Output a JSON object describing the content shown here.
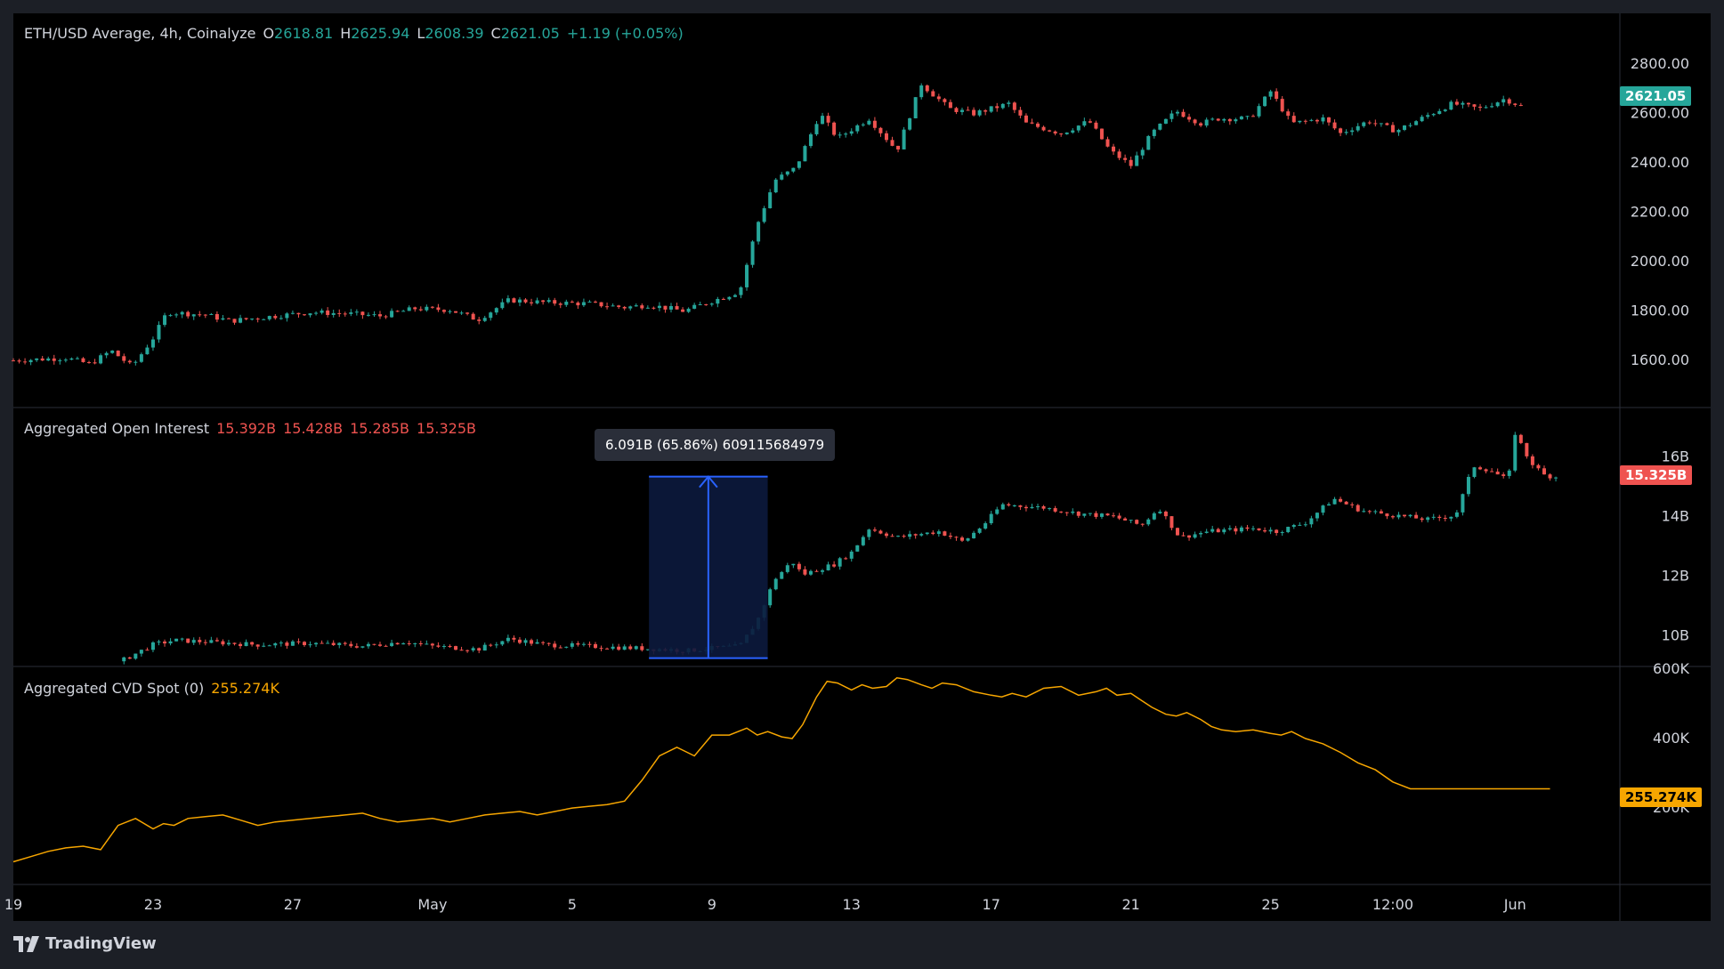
{
  "chart_data": [
    {
      "type": "candlestick",
      "title": "ETH/USD Average, 4h, Coinalyze",
      "ohlc_readout": {
        "open_key": "O",
        "open": "2618.81",
        "high_key": "H",
        "high": "2625.94",
        "low_key": "L",
        "low": "2608.39",
        "close_key": "C",
        "close": "2621.05",
        "change": "+1.19 (+0.05%)"
      },
      "last_value": "2621.05",
      "y_ticks": [
        "2800.00",
        "2600.00",
        "2400.00",
        "2200.00",
        "2000.00",
        "1800.00",
        "1600.00"
      ],
      "ylim": [
        1420,
        2880
      ],
      "close_path": [
        [
          19,
          1600
        ],
        [
          20.5,
          1610
        ],
        [
          21.2,
          1585
        ],
        [
          21.8,
          1640
        ],
        [
          22.4,
          1575
        ],
        [
          23,
          1690
        ],
        [
          23.4,
          1795
        ],
        [
          24.5,
          1785
        ],
        [
          25.2,
          1760
        ],
        [
          26.5,
          1780
        ],
        [
          27.5,
          1795
        ],
        [
          28.5,
          1790
        ],
        [
          29.5,
          1780
        ],
        [
          30.5,
          1810
        ],
        [
          31.5,
          1805
        ],
        [
          32.3,
          1765
        ],
        [
          33.2,
          1845
        ],
        [
          34.2,
          1835
        ],
        [
          35.5,
          1830
        ],
        [
          36.5,
          1815
        ],
        [
          37.2,
          1825
        ],
        [
          38.2,
          1800
        ],
        [
          39,
          1840
        ],
        [
          39.8,
          1880
        ],
        [
          40.3,
          2150
        ],
        [
          40.8,
          2330
        ],
        [
          41.4,
          2380
        ],
        [
          42.1,
          2600
        ],
        [
          42.6,
          2500
        ],
        [
          43.5,
          2580
        ],
        [
          44.3,
          2450
        ],
        [
          45,
          2720
        ],
        [
          45.8,
          2620
        ],
        [
          46.5,
          2600
        ],
        [
          47.5,
          2640
        ],
        [
          48,
          2560
        ],
        [
          49,
          2520
        ],
        [
          49.8,
          2570
        ],
        [
          50.4,
          2450
        ],
        [
          51,
          2390
        ],
        [
          51.6,
          2520
        ],
        [
          52.3,
          2610
        ],
        [
          53,
          2560
        ],
        [
          53.5,
          2580
        ],
        [
          54.4,
          2580
        ],
        [
          55,
          2690
        ],
        [
          55.6,
          2560
        ],
        [
          56.5,
          2580
        ],
        [
          57,
          2520
        ],
        [
          57.8,
          2570
        ],
        [
          58.6,
          2530
        ],
        [
          59.6,
          2600
        ],
        [
          60.2,
          2640
        ],
        [
          61,
          2620
        ],
        [
          61.7,
          2660
        ],
        [
          62.3,
          2621
        ]
      ]
    },
    {
      "type": "candlestick",
      "title": "Aggregated Open Interest",
      "ohlc_readout": {
        "open": "15.392B",
        "high": "15.428B",
        "low": "15.285B",
        "close": "15.325B"
      },
      "last_value": "15.325B",
      "y_ticks": [
        "16B",
        "14B",
        "12B",
        "10B"
      ],
      "ylim": [
        9.0,
        17.3
      ],
      "close_path": [
        [
          19,
          8.7
        ],
        [
          21.5,
          8.8
        ],
        [
          23,
          9.7
        ],
        [
          23.6,
          9.85
        ],
        [
          24.5,
          9.8
        ],
        [
          26,
          9.7
        ],
        [
          27.5,
          9.75
        ],
        [
          29,
          9.65
        ],
        [
          30.2,
          9.8
        ],
        [
          31,
          9.65
        ],
        [
          32.3,
          9.55
        ],
        [
          33.2,
          9.9
        ],
        [
          34.2,
          9.7
        ],
        [
          35.5,
          9.65
        ],
        [
          36.5,
          9.6
        ],
        [
          37.5,
          9.55
        ],
        [
          38.3,
          9.5
        ],
        [
          39.2,
          9.6
        ],
        [
          39.8,
          9.65
        ],
        [
          40.3,
          10.5
        ],
        [
          40.8,
          11.9
        ],
        [
          41.3,
          12.5
        ],
        [
          41.6,
          12.05
        ],
        [
          42.5,
          12.4
        ],
        [
          43,
          12.8
        ],
        [
          43.5,
          13.6
        ],
        [
          44.3,
          13.3
        ],
        [
          45.5,
          13.5
        ],
        [
          46.2,
          13.15
        ],
        [
          46.8,
          13.75
        ],
        [
          47.3,
          14.4
        ],
        [
          48.5,
          14.3
        ],
        [
          49.5,
          14.1
        ],
        [
          50.5,
          14.0
        ],
        [
          51.3,
          13.7
        ],
        [
          51.8,
          14.3
        ],
        [
          52.4,
          13.3
        ],
        [
          53.2,
          13.5
        ],
        [
          54.5,
          13.6
        ],
        [
          55.2,
          13.5
        ],
        [
          56,
          13.8
        ],
        [
          56.8,
          14.6
        ],
        [
          57.6,
          14.2
        ],
        [
          58.5,
          14.05
        ],
        [
          59.5,
          13.9
        ],
        [
          60.3,
          14.05
        ],
        [
          60.8,
          15.7
        ],
        [
          61.3,
          15.55
        ],
        [
          61.8,
          15.2
        ],
        [
          62.0,
          16.8
        ],
        [
          62.4,
          15.9
        ],
        [
          62.8,
          15.4
        ],
        [
          63.2,
          15.325
        ]
      ]
    },
    {
      "type": "line",
      "title": "Aggregated CVD Spot (0)",
      "last_value": "255.274K",
      "y_ticks": [
        "600K",
        "400K",
        "200K"
      ],
      "ylim": [
        -10,
        600
      ],
      "x": [
        19,
        19.5,
        20,
        20.5,
        21,
        21.5,
        22,
        22.5,
        23,
        23.3,
        23.6,
        24,
        24.5,
        25,
        25.5,
        26,
        26.5,
        27,
        27.5,
        28,
        28.5,
        29,
        29.5,
        30,
        30.5,
        31,
        31.5,
        32,
        32.5,
        33,
        33.5,
        34,
        34.5,
        35,
        35.5,
        36,
        36.5,
        37,
        37.5,
        38,
        38.5,
        39,
        39.5,
        40,
        40.3,
        40.6,
        41,
        41.3,
        41.6,
        42,
        42.3,
        42.6,
        43,
        43.3,
        43.6,
        44,
        44.3,
        44.6,
        45,
        45.3,
        45.6,
        46,
        46.5,
        47,
        47.3,
        47.6,
        48,
        48.5,
        49,
        49.5,
        50,
        50.3,
        50.6,
        51,
        51.3,
        51.6,
        52,
        52.3,
        52.6,
        53,
        53.3,
        53.6,
        54,
        54.5,
        55,
        55.3,
        55.6,
        56,
        56.5,
        57,
        57.5,
        58,
        58.5,
        59,
        59.3,
        59.6,
        60,
        60.4,
        60.8,
        61.2,
        61.6,
        62,
        62.3,
        62.6,
        63
      ],
      "values": [
        45,
        60,
        75,
        85,
        90,
        80,
        150,
        170,
        140,
        155,
        150,
        170,
        175,
        180,
        165,
        150,
        160,
        165,
        170,
        175,
        180,
        185,
        170,
        160,
        165,
        170,
        160,
        170,
        180,
        185,
        190,
        180,
        190,
        200,
        205,
        210,
        220,
        280,
        350,
        375,
        350,
        410,
        410,
        430,
        410,
        420,
        405,
        400,
        440,
        520,
        565,
        560,
        540,
        555,
        545,
        550,
        575,
        570,
        555,
        545,
        560,
        555,
        535,
        525,
        520,
        530,
        520,
        545,
        550,
        525,
        535,
        545,
        525,
        530,
        510,
        490,
        470,
        465,
        475,
        455,
        435,
        425,
        420,
        425,
        415,
        410,
        420,
        400,
        385,
        360,
        330,
        310,
        275,
        255.274,
        255.274,
        255.274,
        255.274,
        255.274,
        255.274,
        255.274,
        255.274,
        255.274,
        255.274,
        255.274,
        255.274
      ]
    }
  ],
  "x_axis": {
    "range": [
      19,
      65
    ],
    "ticks": [
      {
        "x": 19,
        "label": "19"
      },
      {
        "x": 23,
        "label": "23"
      },
      {
        "x": 27,
        "label": "27"
      },
      {
        "x": 31,
        "label": "May"
      },
      {
        "x": 35,
        "label": "5"
      },
      {
        "x": 39,
        "label": "9"
      },
      {
        "x": 43,
        "label": "13"
      },
      {
        "x": 47,
        "label": "17"
      },
      {
        "x": 51,
        "label": "21"
      },
      {
        "x": 55,
        "label": "25"
      },
      {
        "x": 58.5,
        "label": "12:00"
      },
      {
        "x": 62,
        "label": "Jun"
      }
    ]
  },
  "measure": {
    "label": "6.091B (65.86%) 609115684979",
    "from": {
      "x": 37.2,
      "value": 9.25
    },
    "to": {
      "x": 40.6,
      "value": 15.34
    }
  },
  "colors": {
    "up": "#26a69a",
    "down": "#ef5350",
    "cvd_line": "#f7a600",
    "measure_fill": "#0c1a3d",
    "measure_line": "#2962ff",
    "price_badge": "#26a69a",
    "oi_badge": "#ef5350",
    "cvd_badge": "#f7a600"
  },
  "brand": {
    "name": "TradingView",
    "logo_icon": "tradingview-logo-icon"
  }
}
